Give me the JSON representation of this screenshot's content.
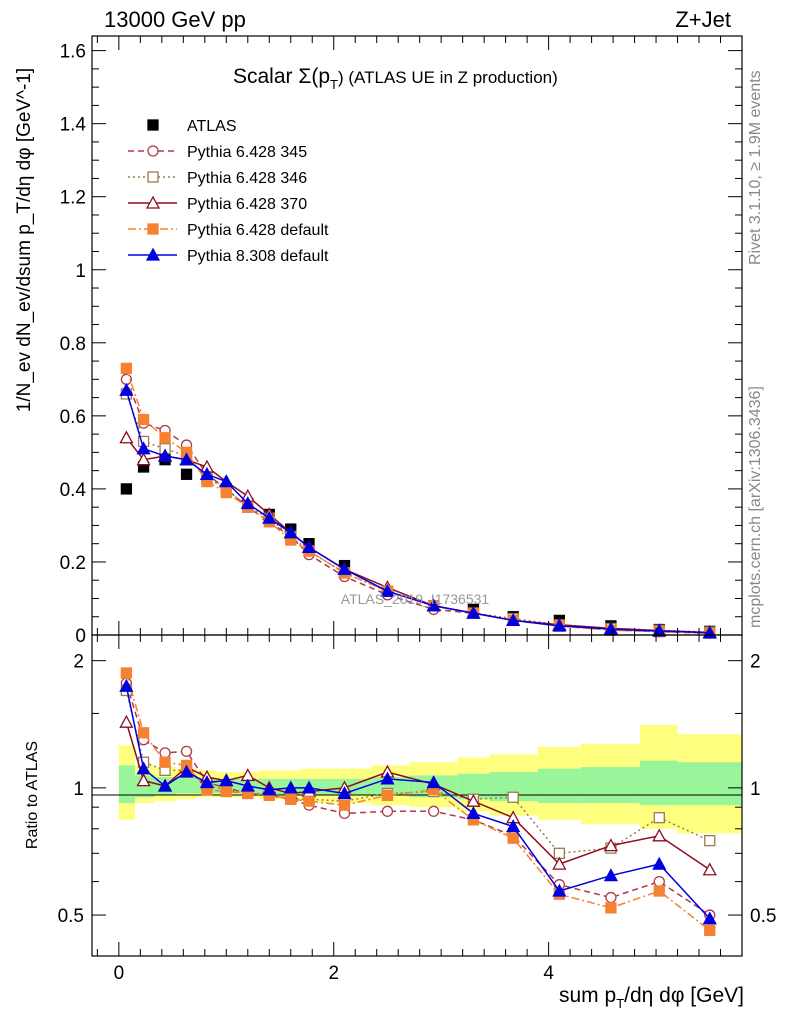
{
  "header": {
    "left": "13000 GeV pp",
    "right": "Z+Jet"
  },
  "side_labels": {
    "rivet": "Rivet 3.1.10, ≥ 1.9M events",
    "mcplots": "mcplots.cern.ch [arXiv:1306.3436]"
  },
  "chart_data": [
    {
      "type": "line",
      "panel": "main",
      "title_prefix": "Scalar Σ(p",
      "title_sub": "T",
      "title_suffix": ") (ATLAS UE in Z production)",
      "ylabel": "1/N_ev dN_ev/dsum p_T/dη dφ [GeV^-1]",
      "xlabel": "sum p_T/dη dφ [GeV]",
      "watermark": "ATLAS_2019_I1736531",
      "xlim": [
        -0.25,
        5.8
      ],
      "ylim": [
        0,
        1.64
      ],
      "yticks": [
        0,
        0.2,
        0.4,
        0.6,
        0.8,
        1,
        1.2,
        1.4,
        1.6
      ],
      "ytick_labels": [
        "0",
        "0.2",
        "0.4",
        "0.6",
        "0.8",
        "1",
        "1.2",
        "1.4",
        "1.6"
      ],
      "xticks": [
        0,
        2,
        4
      ],
      "x": [
        0.07,
        0.23,
        0.43,
        0.63,
        0.82,
        1.0,
        1.2,
        1.4,
        1.6,
        1.77,
        2.1,
        2.5,
        2.93,
        3.3,
        3.67,
        4.1,
        4.58,
        5.03,
        5.5
      ],
      "series": [
        {
          "name": "ATLAS",
          "color": "#000000",
          "marker": "square",
          "line": "none",
          "values": [
            0.4,
            0.46,
            0.48,
            0.44,
            0.43,
            0.4,
            0.36,
            0.33,
            0.29,
            0.25,
            0.19,
            0.12,
            0.08,
            0.07,
            0.05,
            0.04,
            0.025,
            0.015,
            0.01
          ]
        },
        {
          "name": "Pythia 6.428 345",
          "color": "#b03a48",
          "marker": "circle-open",
          "line": "dashed",
          "values": [
            0.7,
            0.58,
            0.56,
            0.52,
            0.44,
            0.4,
            0.35,
            0.31,
            0.27,
            0.22,
            0.16,
            0.11,
            0.07,
            0.06,
            0.04,
            0.025,
            0.014,
            0.009,
            0.005
          ]
        },
        {
          "name": "Pythia 6.428 346",
          "color": "#9a7b4f",
          "marker": "square-open",
          "line": "dotted",
          "values": [
            0.66,
            0.53,
            0.51,
            0.49,
            0.43,
            0.4,
            0.35,
            0.32,
            0.27,
            0.23,
            0.17,
            0.12,
            0.08,
            0.06,
            0.045,
            0.028,
            0.018,
            0.013,
            0.008
          ]
        },
        {
          "name": "Pythia 6.428 370",
          "color": "#8b0d1f",
          "marker": "triangle-open",
          "line": "solid",
          "values": [
            0.54,
            0.48,
            0.49,
            0.48,
            0.46,
            0.42,
            0.38,
            0.33,
            0.28,
            0.24,
            0.18,
            0.13,
            0.08,
            0.06,
            0.04,
            0.028,
            0.018,
            0.012,
            0.007
          ]
        },
        {
          "name": "Pythia 6.428 default",
          "color": "#f58231",
          "marker": "square",
          "line": "dashdot",
          "values": [
            0.73,
            0.59,
            0.54,
            0.5,
            0.42,
            0.39,
            0.35,
            0.31,
            0.26,
            0.23,
            0.17,
            0.12,
            0.08,
            0.06,
            0.04,
            0.024,
            0.013,
            0.009,
            0.005
          ]
        },
        {
          "name": "Pythia 8.308 default",
          "color": "#0000e0",
          "marker": "triangle",
          "line": "solid",
          "values": [
            0.67,
            0.51,
            0.49,
            0.48,
            0.44,
            0.42,
            0.36,
            0.32,
            0.28,
            0.24,
            0.18,
            0.12,
            0.08,
            0.06,
            0.04,
            0.025,
            0.016,
            0.011,
            0.006
          ]
        }
      ]
    },
    {
      "type": "line",
      "panel": "ratio",
      "ylabel": "Ratio to ATLAS",
      "xlabel": "sum p_T/dη dφ [GeV]",
      "xlim": [
        -0.25,
        5.8
      ],
      "ylim": [
        0.4,
        2.3
      ],
      "yticks": [
        0.5,
        1,
        2
      ],
      "ytick_labels": [
        "0.5",
        "1",
        "2"
      ],
      "xticks": [
        0,
        2,
        4
      ],
      "xtick_labels": [
        "0",
        "2",
        "4"
      ],
      "bin_edges": [
        0,
        0.15,
        0.33,
        0.53,
        0.73,
        0.9,
        1.1,
        1.3,
        1.5,
        1.7,
        1.85,
        2.35,
        2.7,
        3.15,
        3.45,
        3.9,
        4.3,
        4.85,
        5.2,
        5.8
      ],
      "band_green": [
        [
          0.92,
          1.13
        ],
        [
          0.95,
          1.07
        ],
        [
          0.96,
          1.06
        ],
        [
          0.97,
          1.06
        ],
        [
          0.97,
          1.05
        ],
        [
          0.97,
          1.05
        ],
        [
          0.97,
          1.05
        ],
        [
          0.96,
          1.05
        ],
        [
          0.96,
          1.05
        ],
        [
          0.96,
          1.05
        ],
        [
          0.96,
          1.05
        ],
        [
          0.96,
          1.06
        ],
        [
          0.95,
          1.07
        ],
        [
          0.94,
          1.08
        ],
        [
          0.93,
          1.09
        ],
        [
          0.92,
          1.11
        ],
        [
          0.92,
          1.12
        ],
        [
          0.91,
          1.16
        ],
        [
          0.91,
          1.15
        ]
      ],
      "band_yellow": [
        [
          0.84,
          1.26
        ],
        [
          0.92,
          1.13
        ],
        [
          0.93,
          1.12
        ],
        [
          0.94,
          1.11
        ],
        [
          0.95,
          1.1
        ],
        [
          0.95,
          1.09
        ],
        [
          0.95,
          1.09
        ],
        [
          0.94,
          1.1
        ],
        [
          0.94,
          1.1
        ],
        [
          0.93,
          1.11
        ],
        [
          0.92,
          1.11
        ],
        [
          0.91,
          1.13
        ],
        [
          0.9,
          1.15
        ],
        [
          0.88,
          1.18
        ],
        [
          0.86,
          1.2
        ],
        [
          0.84,
          1.25
        ],
        [
          0.82,
          1.27
        ],
        [
          0.8,
          1.41
        ],
        [
          0.78,
          1.34
        ]
      ],
      "x": [
        0.07,
        0.23,
        0.43,
        0.63,
        0.82,
        1.0,
        1.2,
        1.4,
        1.6,
        1.77,
        2.1,
        2.5,
        2.93,
        3.3,
        3.67,
        4.1,
        4.58,
        5.03,
        5.5
      ],
      "series": [
        {
          "name": "Pythia 6.428 345",
          "color": "#b03a48",
          "marker": "circle-open",
          "line": "dashed",
          "values": [
            1.77,
            1.3,
            1.21,
            1.22,
            1.03,
            1.0,
            0.97,
            0.96,
            0.94,
            0.91,
            0.87,
            0.88,
            0.88,
            0.84,
            0.77,
            0.59,
            0.55,
            0.6,
            0.5
          ]
        },
        {
          "name": "Pythia 6.428 346",
          "color": "#9a7b4f",
          "marker": "square-open",
          "line": "dotted",
          "values": [
            1.7,
            1.15,
            1.1,
            1.1,
            1.01,
            0.99,
            0.97,
            0.97,
            0.94,
            0.94,
            0.93,
            0.97,
            0.98,
            0.94,
            0.95,
            0.7,
            0.72,
            0.85,
            0.75
          ]
        },
        {
          "name": "Pythia 6.428 370",
          "color": "#8b0d1f",
          "marker": "triangle-open",
          "line": "solid",
          "values": [
            1.43,
            1.04,
            1.01,
            1.12,
            1.06,
            1.04,
            1.07,
            1.0,
            0.97,
            0.98,
            1.0,
            1.09,
            1.02,
            0.93,
            0.85,
            0.66,
            0.73,
            0.77,
            0.64
          ]
        },
        {
          "name": "Pythia 6.428 default",
          "color": "#f58231",
          "marker": "square",
          "line": "dashdot",
          "values": [
            1.87,
            1.35,
            1.15,
            1.13,
            0.99,
            0.98,
            0.97,
            0.96,
            0.94,
            0.93,
            0.91,
            0.96,
            0.99,
            0.84,
            0.76,
            0.56,
            0.52,
            0.57,
            0.46
          ]
        },
        {
          "name": "Pythia 8.308 default",
          "color": "#0000e0",
          "marker": "triangle",
          "line": "solid",
          "values": [
            1.74,
            1.11,
            1.01,
            1.09,
            1.03,
            1.04,
            1.01,
            0.99,
            1.0,
            1.0,
            0.97,
            1.05,
            1.03,
            0.87,
            0.81,
            0.57,
            0.62,
            0.66,
            0.49
          ]
        }
      ]
    }
  ]
}
